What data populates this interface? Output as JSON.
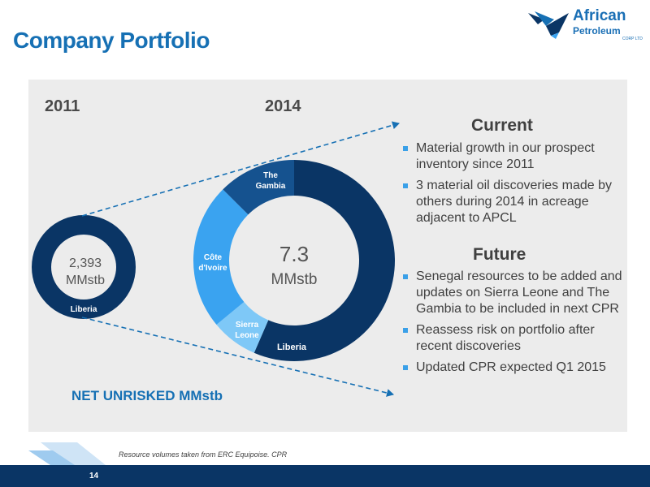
{
  "header": {
    "title": "Company Portfolio",
    "logo": {
      "line1": "African",
      "line2": "Petroleum",
      "small": "CORP LTD"
    }
  },
  "years": {
    "left": "2011",
    "right": "2014"
  },
  "chart_data": [
    {
      "type": "pie",
      "variant": "donut",
      "year": "2011",
      "center_value": "2,393",
      "center_unit": "MMstb",
      "categories": [
        "Liberia"
      ],
      "values": [
        2393
      ]
    },
    {
      "type": "pie",
      "variant": "donut",
      "year": "2014",
      "center_value": "7.3",
      "center_unit": "MMstb",
      "categories": [
        "Liberia",
        "Sierra Leone",
        "Côte d'Ivoire",
        "The Gambia"
      ],
      "values": [
        0.565,
        0.075,
        0.235,
        0.125
      ],
      "colors": [
        "#0a3565",
        "#7ec8f7",
        "#3aa3f0",
        "#15528f"
      ]
    }
  ],
  "labels": {
    "liberia_small": "Liberia",
    "liberia": "Liberia",
    "sierra_leone": [
      "Sierra",
      "Leone"
    ],
    "cote_divoire": [
      "Côte",
      "d'Ivoire"
    ],
    "the_gambia": [
      "The",
      "Gambia"
    ]
  },
  "net_label": "NET UNRISKED MMstb",
  "current": {
    "heading": "Current",
    "bullets": [
      "Material growth in our prospect inventory since 2011",
      "3 material oil discoveries made by others during 2014 in acreage adjacent to APCL"
    ]
  },
  "future": {
    "heading": "Future",
    "bullets": [
      "Senegal resources to be added and updates on Sierra Leone and The Gambia to be included in next CPR",
      "Reassess risk on portfolio after recent discoveries",
      "Updated CPR expected Q1 2015"
    ]
  },
  "footer": {
    "note": "Resource volumes taken from ERC Equipoise. CPR",
    "page": "14"
  },
  "colors": {
    "accent": "#1670b4",
    "dark_navy": "#0a3565",
    "panel": "#ececec"
  }
}
